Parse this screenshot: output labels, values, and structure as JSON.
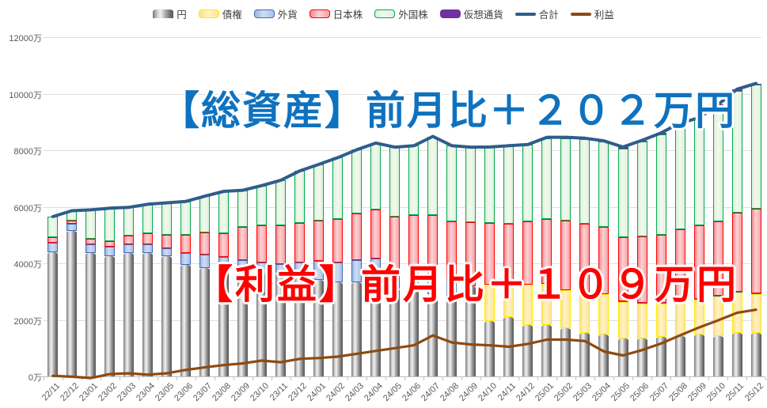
{
  "overlays": {
    "assets_title": "【総資産】前月比＋２０２万円",
    "profit_title": "【利益】前月比＋１０９万円"
  },
  "y_axis": {
    "unit": "万",
    "labels": [
      "12000万",
      "10000万",
      "8000万",
      "6000万",
      "4000万",
      "2000万",
      "0万"
    ],
    "max": 12000,
    "min": 0,
    "step": 2000
  },
  "colors": {
    "background": "#ffffff",
    "gridline": "#dedede",
    "axis": "#bfbfbf",
    "axis_text": "#595959",
    "headline_assets": "#0e72bf",
    "headline_profit": "#fe0000",
    "total_line": "#2e5d8b",
    "profit_line": "#8e4a10"
  },
  "chart_data": {
    "type": "combo-stacked-bar-line",
    "unit": "万円",
    "ylim": [
      0,
      12000
    ],
    "grid": true,
    "legend_position": "top-center",
    "categories": [
      "22/11",
      "22/12",
      "23/01",
      "23/02",
      "23/03",
      "23/04",
      "23/05",
      "23/06",
      "23/07",
      "23/08",
      "23/09",
      "23/10",
      "23/11",
      "23/12",
      "24/01",
      "24/02",
      "24/03",
      "24/04",
      "24/05",
      "24/06",
      "24/07",
      "24/08",
      "24/09",
      "24/10",
      "24/11",
      "24/12",
      "25/01",
      "25/02",
      "25/03",
      "25/04",
      "25/05",
      "25/06",
      "25/07",
      "25/08",
      "25/09",
      "25/10",
      "25/11",
      "25/12"
    ],
    "series": [
      {
        "name": "円",
        "key": "yen",
        "type": "bar",
        "fill": "#bdbdbd",
        "border": "#6b6b6b",
        "values": [
          4400,
          5150,
          4370,
          4260,
          4360,
          4360,
          4260,
          3940,
          3830,
          3750,
          3690,
          3610,
          3660,
          3690,
          3420,
          3320,
          3320,
          3320,
          3100,
          3040,
          2900,
          2760,
          3180,
          1970,
          2110,
          1830,
          1830,
          1720,
          1550,
          1490,
          1350,
          1350,
          1410,
          1440,
          1490,
          1440,
          1550,
          1550
        ]
      },
      {
        "name": "債権",
        "key": "bond",
        "type": "bar",
        "fill": "#ffe9a6",
        "border": "#fcee00",
        "values": [
          0,
          0,
          0,
          0,
          0,
          0,
          0,
          0,
          0,
          0,
          0,
          0,
          0,
          0,
          0,
          0,
          0,
          0,
          0,
          0,
          0,
          0,
          0,
          1270,
          1215,
          1410,
          1440,
          1325,
          1350,
          1410,
          1270,
          1215,
          1155,
          1180,
          1215,
          1375,
          1410,
          1350
        ]
      },
      {
        "name": "外貨",
        "key": "fx",
        "type": "bar",
        "fill": "#b6c9eb",
        "border": "#3f6ab5",
        "values": [
          330,
          240,
          310,
          330,
          310,
          325,
          285,
          430,
          480,
          475,
          420,
          420,
          310,
          340,
          665,
          705,
          790,
          850,
          505,
          510,
          620,
          655,
          0,
          0,
          0,
          0,
          0,
          0,
          0,
          0,
          45,
          45,
          45,
          45,
          45,
          45,
          45,
          45
        ]
      },
      {
        "name": "日本株",
        "key": "jp-stock",
        "type": "bar",
        "fill": "#f6b3b7",
        "border": "#fe0000",
        "values": [
          190,
          130,
          180,
          190,
          300,
          375,
          470,
          645,
          790,
          845,
          1185,
          1320,
          1380,
          1410,
          1435,
          1555,
          1665,
          1745,
          2055,
          2170,
          2200,
          2075,
          2270,
          2200,
          2085,
          2245,
          2310,
          2465,
          2490,
          2395,
          2265,
          2350,
          2405,
          2550,
          2600,
          2630,
          2795,
          2995
        ]
      },
      {
        "name": "外国株",
        "key": "foreign-stock",
        "type": "bar",
        "fill": "#e6f3e1",
        "border": "#00a94f",
        "values": [
          730,
          340,
          1030,
          1170,
          1010,
          1030,
          1125,
          1175,
          1275,
          1475,
          1290,
          1400,
          1590,
          1830,
          1980,
          2160,
          2245,
          2340,
          2450,
          2440,
          2770,
          2670,
          2660,
          2675,
          2750,
          2720,
          2840,
          2910,
          3000,
          3000,
          3140,
          3345,
          3550,
          3700,
          3750,
          4075,
          4310,
          4370
        ]
      },
      {
        "name": "仮想通貨",
        "key": "crypto",
        "type": "bar",
        "fill": "#7030a0",
        "border": "#7030a0",
        "values": [
          0,
          0,
          0,
          0,
          0,
          0,
          0,
          0,
          0,
          0,
          0,
          0,
          0,
          0,
          0,
          0,
          0,
          0,
          0,
          0,
          0,
          0,
          0,
          0,
          0,
          0,
          40,
          40,
          35,
          35,
          45,
          45,
          45,
          45,
          45,
          45,
          50,
          52
        ]
      },
      {
        "name": "合計",
        "key": "total",
        "type": "line",
        "color": "#2e5d8b",
        "values": [
          5650,
          5860,
          5890,
          5950,
          5980,
          6090,
          6140,
          6190,
          6375,
          6545,
          6585,
          6750,
          6940,
          7270,
          7500,
          7740,
          8020,
          8255,
          8110,
          8160,
          8490,
          8160,
          8110,
          8115,
          8160,
          8205,
          8460,
          8460,
          8425,
          8330,
          8115,
          8350,
          8610,
          8960,
          9145,
          9610,
          10160,
          10362
        ]
      },
      {
        "name": "利益",
        "key": "profit",
        "type": "line",
        "color": "#8e4a10",
        "values": [
          20,
          -10,
          -60,
          80,
          110,
          60,
          110,
          230,
          320,
          400,
          460,
          560,
          500,
          620,
          650,
          700,
          800,
          900,
          1000,
          1100,
          1450,
          1200,
          1130,
          1100,
          1050,
          1150,
          1300,
          1300,
          1250,
          880,
          740,
          930,
          1160,
          1450,
          1730,
          1980,
          2250,
          2359
        ]
      }
    ]
  }
}
